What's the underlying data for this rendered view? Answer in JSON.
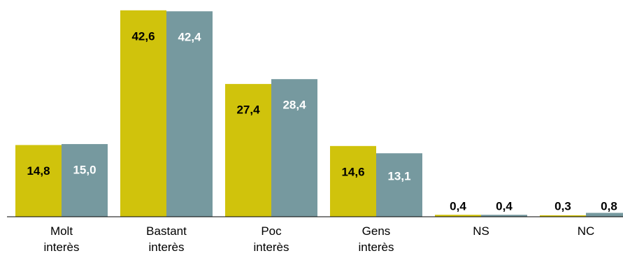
{
  "chart_data": {
    "type": "bar",
    "categories": [
      [
        "Molt",
        "interès"
      ],
      [
        "Bastant",
        "interès"
      ],
      [
        "Poc",
        "interès"
      ],
      [
        "Gens",
        "interès"
      ],
      [
        "NS"
      ],
      [
        "NC"
      ]
    ],
    "series": [
      {
        "color": "#d0c30c",
        "label_color": "#000000",
        "values": [
          14.8,
          42.6,
          27.4,
          14.6,
          0.4,
          0.3
        ],
        "labels": [
          "14,8",
          "42,6",
          "27,4",
          "14,6",
          "0,4",
          "0,3"
        ]
      },
      {
        "color": "#76999f",
        "label_color": "#ffffff",
        "values": [
          15.0,
          42.4,
          28.4,
          13.1,
          0.4,
          0.8
        ],
        "labels": [
          "15,0",
          "42,4",
          "28,4",
          "13,1",
          "0,4",
          "0,8"
        ]
      }
    ],
    "title": "",
    "xlabel": "",
    "ylabel": "",
    "ylim": [
      0,
      43
    ],
    "grid": false,
    "legend": "none"
  }
}
